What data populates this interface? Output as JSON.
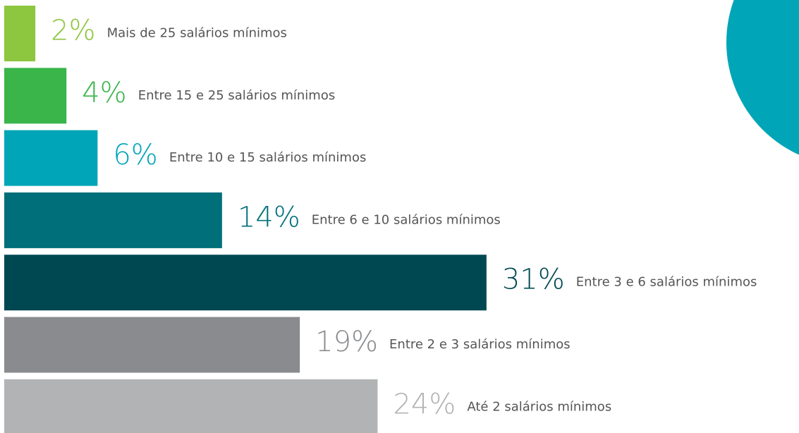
{
  "chart_data": {
    "type": "bar",
    "orientation": "horizontal",
    "categories": [
      "Mais de 25 salários mínimos",
      "Entre 15 e 25 salários mínimos",
      "Entre 10 e 15 salários mínimos",
      "Entre 6 e 10 salários mínimos",
      "Entre 3 e 6 salários mínimos",
      "Entre 2 e 3 salários mínimos",
      "Até 2 salários mínimos"
    ],
    "values": [
      2,
      4,
      6,
      14,
      31,
      19,
      24
    ],
    "value_labels": [
      "2%",
      "4%",
      "6%",
      "14%",
      "31%",
      "19%",
      "24%"
    ],
    "colors": [
      "#8dc63f",
      "#39b54a",
      "#00a5b8",
      "#006f7a",
      "#004851",
      "#898b8e",
      "#b1b3b4"
    ]
  }
}
